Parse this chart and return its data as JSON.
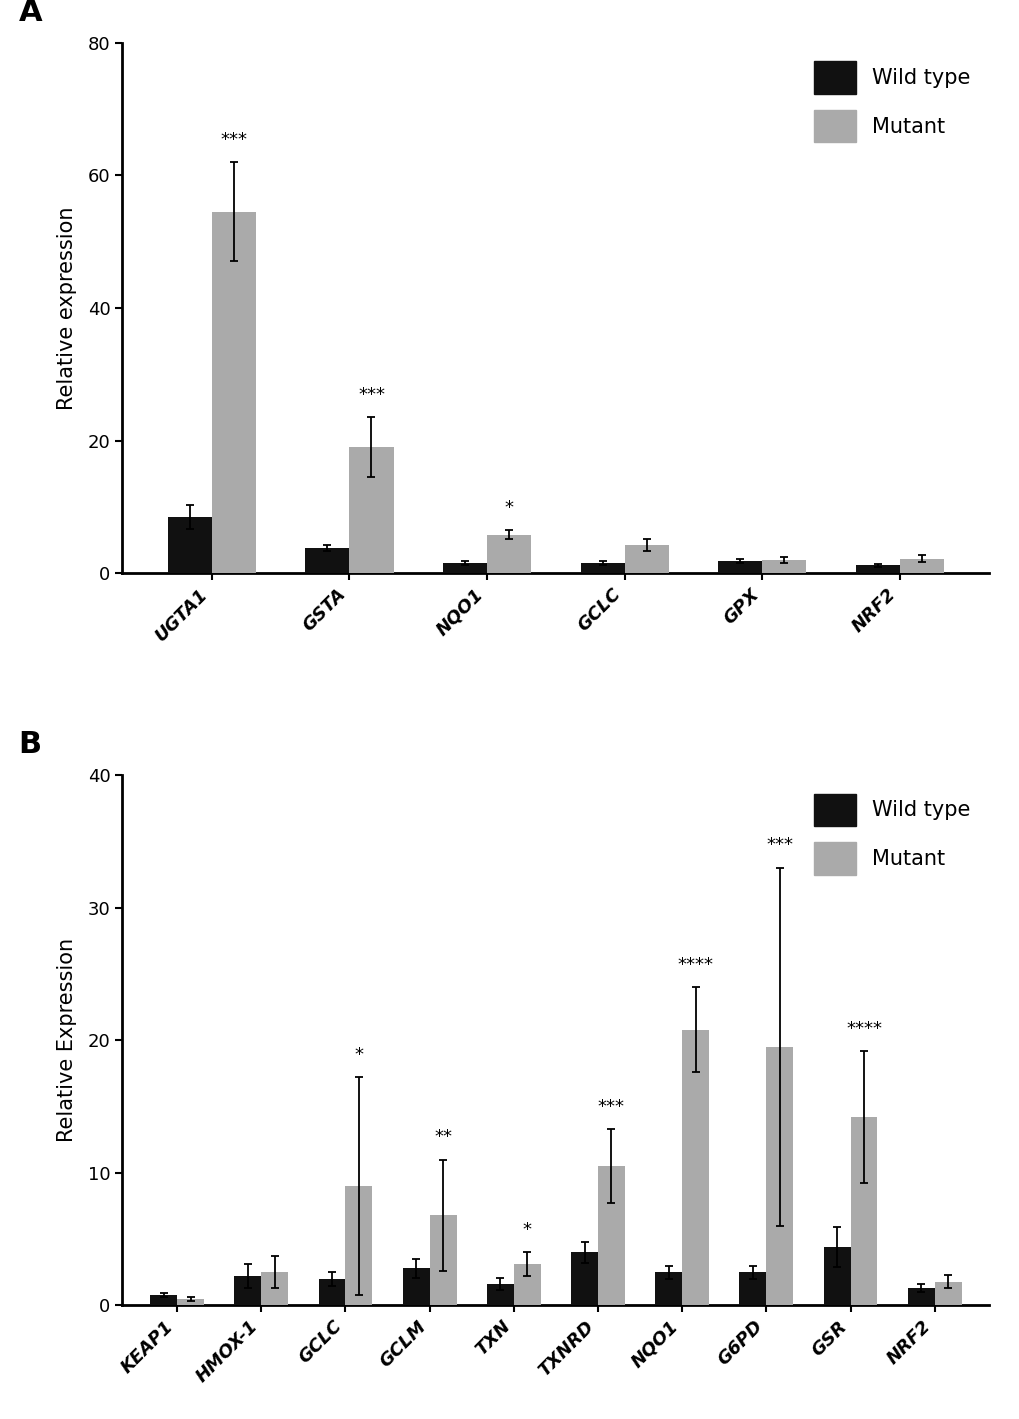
{
  "panel_A": {
    "categories": [
      "UGTA1",
      "GSTA",
      "NQO1",
      "GCLC",
      "GPX",
      "NRF2"
    ],
    "wildtype_means": [
      8.5,
      3.8,
      1.5,
      1.5,
      1.8,
      1.2
    ],
    "wildtype_errors": [
      1.8,
      0.5,
      0.3,
      0.3,
      0.3,
      0.2
    ],
    "mutant_means": [
      54.5,
      19.0,
      5.8,
      4.2,
      2.0,
      2.2
    ],
    "mutant_errors": [
      7.5,
      4.5,
      0.7,
      0.9,
      0.4,
      0.5
    ],
    "significance": [
      "***",
      "***",
      "*",
      "",
      "",
      ""
    ],
    "ylabel": "Relative expression",
    "ylim": [
      0,
      80
    ],
    "yticks": [
      0,
      20,
      40,
      60,
      80
    ]
  },
  "panel_B": {
    "categories": [
      "KEAP1",
      "HMOX-1",
      "GCLC",
      "GCLM",
      "TXN",
      "TXNRD",
      "NQO1",
      "G6PD",
      "GSR",
      "NRF2"
    ],
    "wildtype_means": [
      0.8,
      2.2,
      2.0,
      2.8,
      1.6,
      4.0,
      2.5,
      2.5,
      4.4,
      1.3
    ],
    "wildtype_errors": [
      0.15,
      0.9,
      0.5,
      0.7,
      0.45,
      0.8,
      0.5,
      0.5,
      1.5,
      0.3
    ],
    "mutant_means": [
      0.5,
      2.5,
      9.0,
      6.8,
      3.1,
      10.5,
      20.8,
      19.5,
      14.2,
      1.8
    ],
    "mutant_errors": [
      0.15,
      1.2,
      8.2,
      4.2,
      0.9,
      2.8,
      3.2,
      13.5,
      5.0,
      0.5
    ],
    "significance": [
      "",
      "",
      "*",
      "**",
      "*",
      "***",
      "****",
      "***",
      "****",
      ""
    ],
    "ylabel": "Relative Expression",
    "ylim": [
      0,
      40
    ],
    "yticks": [
      0,
      10,
      20,
      30,
      40
    ]
  },
  "bar_width": 0.32,
  "wildtype_color": "#111111",
  "mutant_color": "#aaaaaa",
  "legend_labels": [
    "Wild type",
    "Mutant"
  ],
  "label_fontsize": 15,
  "tick_fontsize": 13,
  "sig_fontsize": 13,
  "panel_label_fontsize": 22,
  "legend_fontsize": 15,
  "background_color": "#ffffff"
}
